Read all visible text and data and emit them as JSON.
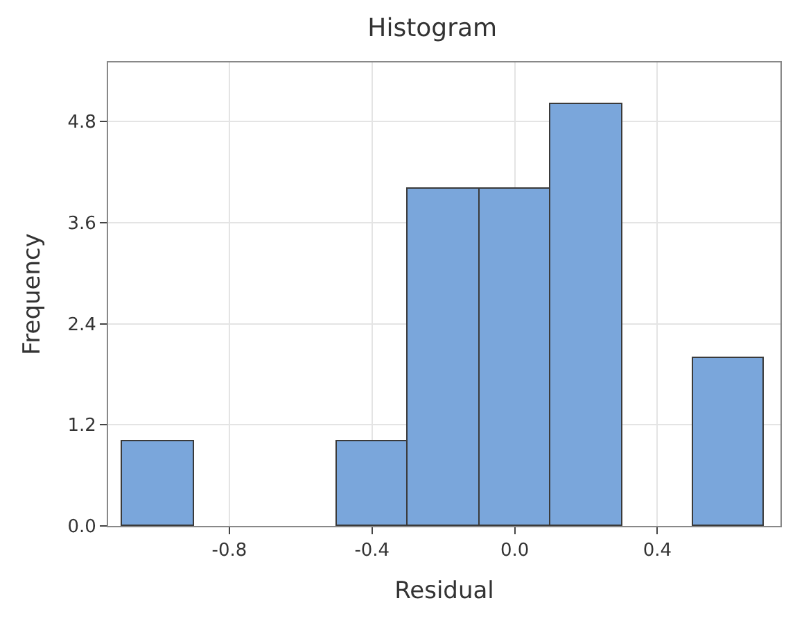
{
  "chart_data": {
    "type": "histogram",
    "title": "Histogram",
    "xlabel": "Residual",
    "ylabel": "Frequency",
    "bins": [
      -1.1,
      -0.9,
      -0.7,
      -0.5,
      -0.3,
      -0.1,
      0.1,
      0.3,
      0.5,
      0.7
    ],
    "values": [
      1,
      0,
      0,
      1,
      4,
      4,
      5,
      0,
      2
    ],
    "color": "#7aa6db",
    "xlim": [
      -1.14,
      0.745
    ],
    "xticks": [
      -0.8,
      -0.4,
      {
        "value": 0,
        "label": "0.0"
      },
      0.4
    ],
    "ylim": [
      0,
      5.5
    ],
    "yticks": [
      {
        "value": 0,
        "label": "0.0"
      },
      1.2,
      2.4,
      3.6,
      4.8
    ],
    "grid": true
  }
}
